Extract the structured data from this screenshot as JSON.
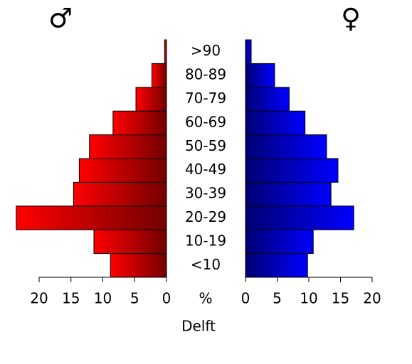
{
  "chart_data": {
    "type": "pyramid",
    "categories": [
      "<10",
      "10-19",
      "20-29",
      "30-39",
      "40-49",
      "50-59",
      "60-69",
      "70-79",
      "80-89",
      ">90"
    ],
    "series": [
      {
        "name": "♂",
        "color": "#ff0000",
        "values": [
          8.8,
          11.4,
          23.6,
          14.6,
          13.7,
          12.1,
          8.4,
          4.8,
          2.3,
          0.3
        ]
      },
      {
        "name": "♀",
        "color": "#0000ff",
        "values": [
          9.8,
          10.7,
          17.1,
          13.5,
          14.6,
          12.8,
          9.4,
          6.9,
          4.6,
          0.9
        ]
      }
    ],
    "xlim": [
      0,
      20
    ],
    "xticks": [
      0,
      5,
      10,
      15,
      20
    ],
    "center_label": "%",
    "xlabel": "Delft"
  }
}
